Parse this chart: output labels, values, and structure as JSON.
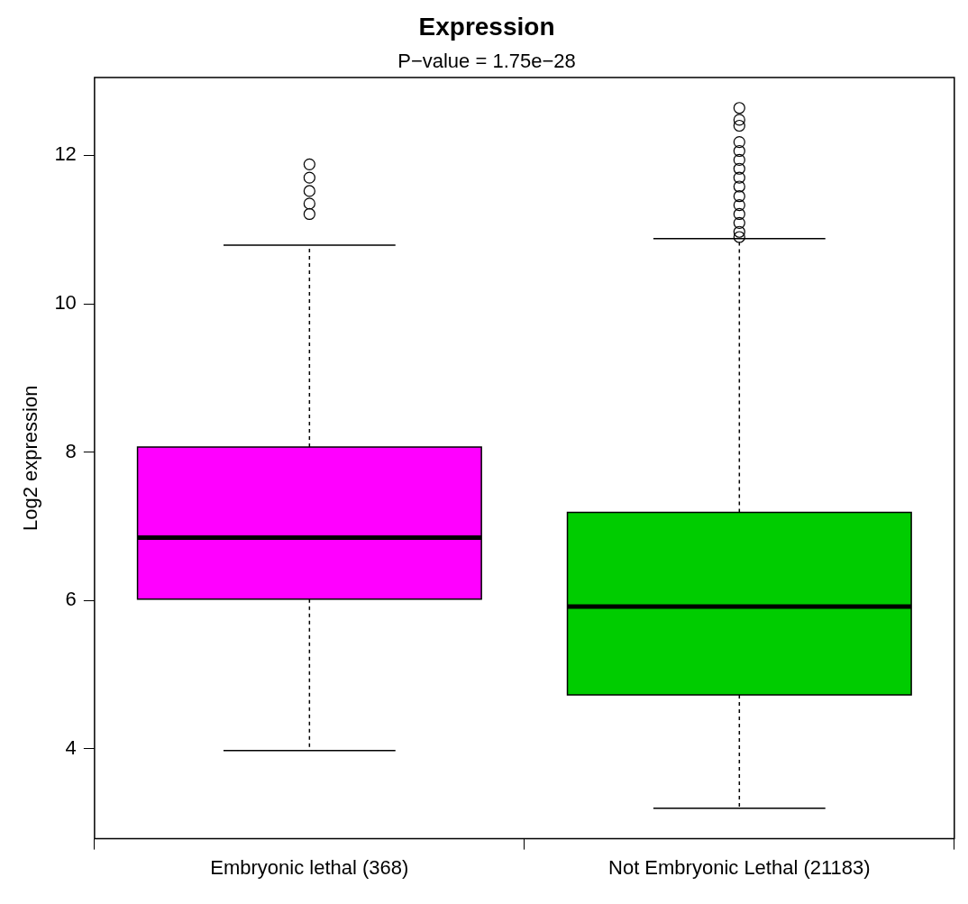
{
  "chart_data": {
    "type": "box",
    "title": "Expression",
    "subtitle": "P−value = 1.75e−28",
    "ylabel": "Log2 expression",
    "categories": [
      "Embryonic lethal (368)",
      "Not Embryonic Lethal (21183)"
    ],
    "colors": [
      "#ff00ff",
      "#00cc00"
    ],
    "boxes": [
      {
        "low": 3.98,
        "q1": 6.02,
        "median": 6.85,
        "q3": 8.07,
        "high": 10.79,
        "outliers": [
          11.21,
          11.35,
          11.52,
          11.7,
          11.88
        ]
      },
      {
        "low": 3.2,
        "q1": 4.73,
        "median": 5.92,
        "q3": 7.19,
        "high": 10.88,
        "outliers": [
          10.9,
          10.97,
          11.09,
          11.21,
          11.33,
          11.45,
          11.58,
          11.7,
          11.82,
          11.94,
          12.06,
          12.18,
          12.4,
          12.48,
          12.64
        ]
      }
    ],
    "ylim": [
      2.79,
      13.05
    ],
    "yticks": [
      4,
      6,
      8,
      10,
      12
    ],
    "grid": false,
    "marker": "circle"
  }
}
